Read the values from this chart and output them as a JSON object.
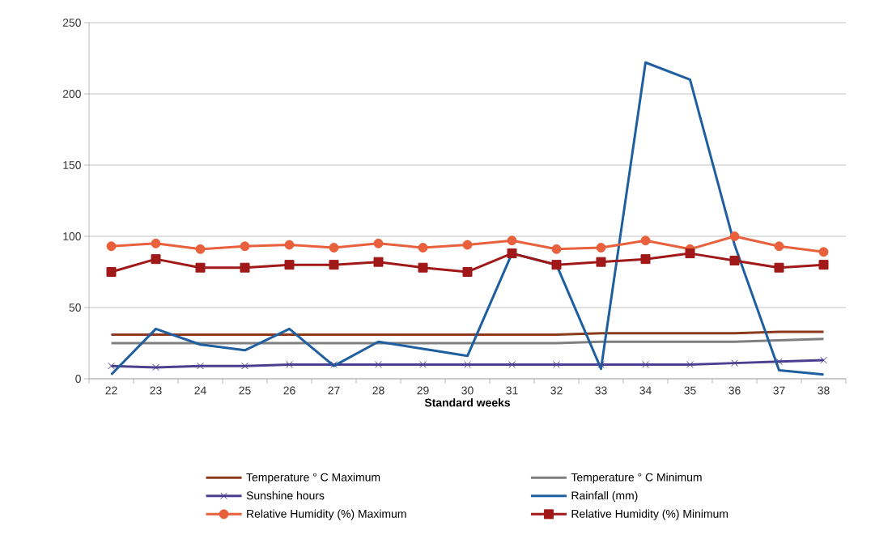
{
  "chart_data": {
    "type": "line",
    "xlabel": "Standard weeks",
    "categories": [
      "22",
      "23",
      "24",
      "25",
      "26",
      "27",
      "28",
      "29",
      "30",
      "31",
      "32",
      "33",
      "34",
      "35",
      "36",
      "37",
      "38"
    ],
    "ylim": [
      0,
      250
    ],
    "yticks": [
      0,
      50,
      100,
      150,
      200,
      250
    ],
    "grid": "y",
    "legend": "bottom",
    "series": [
      {
        "name": "Temperature ° C Maximum",
        "color": "#8b3a1e",
        "marker": "none",
        "values": [
          31,
          31,
          31,
          31,
          31,
          31,
          31,
          31,
          31,
          31,
          31,
          32,
          32,
          32,
          32,
          33,
          33
        ]
      },
      {
        "name": "Temperature ° C Minimum",
        "color": "#7f7f7f",
        "marker": "none",
        "values": [
          25,
          25,
          25,
          25,
          25,
          25,
          25,
          25,
          25,
          25,
          25,
          26,
          26,
          26,
          26,
          27,
          28
        ]
      },
      {
        "name": "Sunshine hours",
        "color": "#4b3f8f",
        "marker": "cross",
        "values": [
          9,
          8,
          9,
          9,
          10,
          10,
          10,
          10,
          10,
          10,
          10,
          10,
          10,
          10,
          11,
          12,
          13
        ]
      },
      {
        "name": "Rainfall (mm)",
        "color": "#1f5f9f",
        "marker": "none",
        "values": [
          3,
          35,
          24,
          20,
          35,
          9,
          26,
          21,
          16,
          88,
          80,
          7,
          222,
          210,
          94,
          6,
          3
        ]
      },
      {
        "name": "Relative Humidity (%) Maximum",
        "color": "#e8603c",
        "marker": "circle",
        "values": [
          93,
          95,
          91,
          93,
          94,
          92,
          95,
          92,
          94,
          97,
          91,
          92,
          97,
          91,
          100,
          93,
          89
        ]
      },
      {
        "name": "Relative Humidity (%) Minimum",
        "color": "#a01818",
        "marker": "square",
        "values": [
          75,
          84,
          78,
          78,
          80,
          80,
          82,
          78,
          75,
          88,
          80,
          82,
          84,
          88,
          83,
          78,
          80
        ]
      }
    ]
  }
}
